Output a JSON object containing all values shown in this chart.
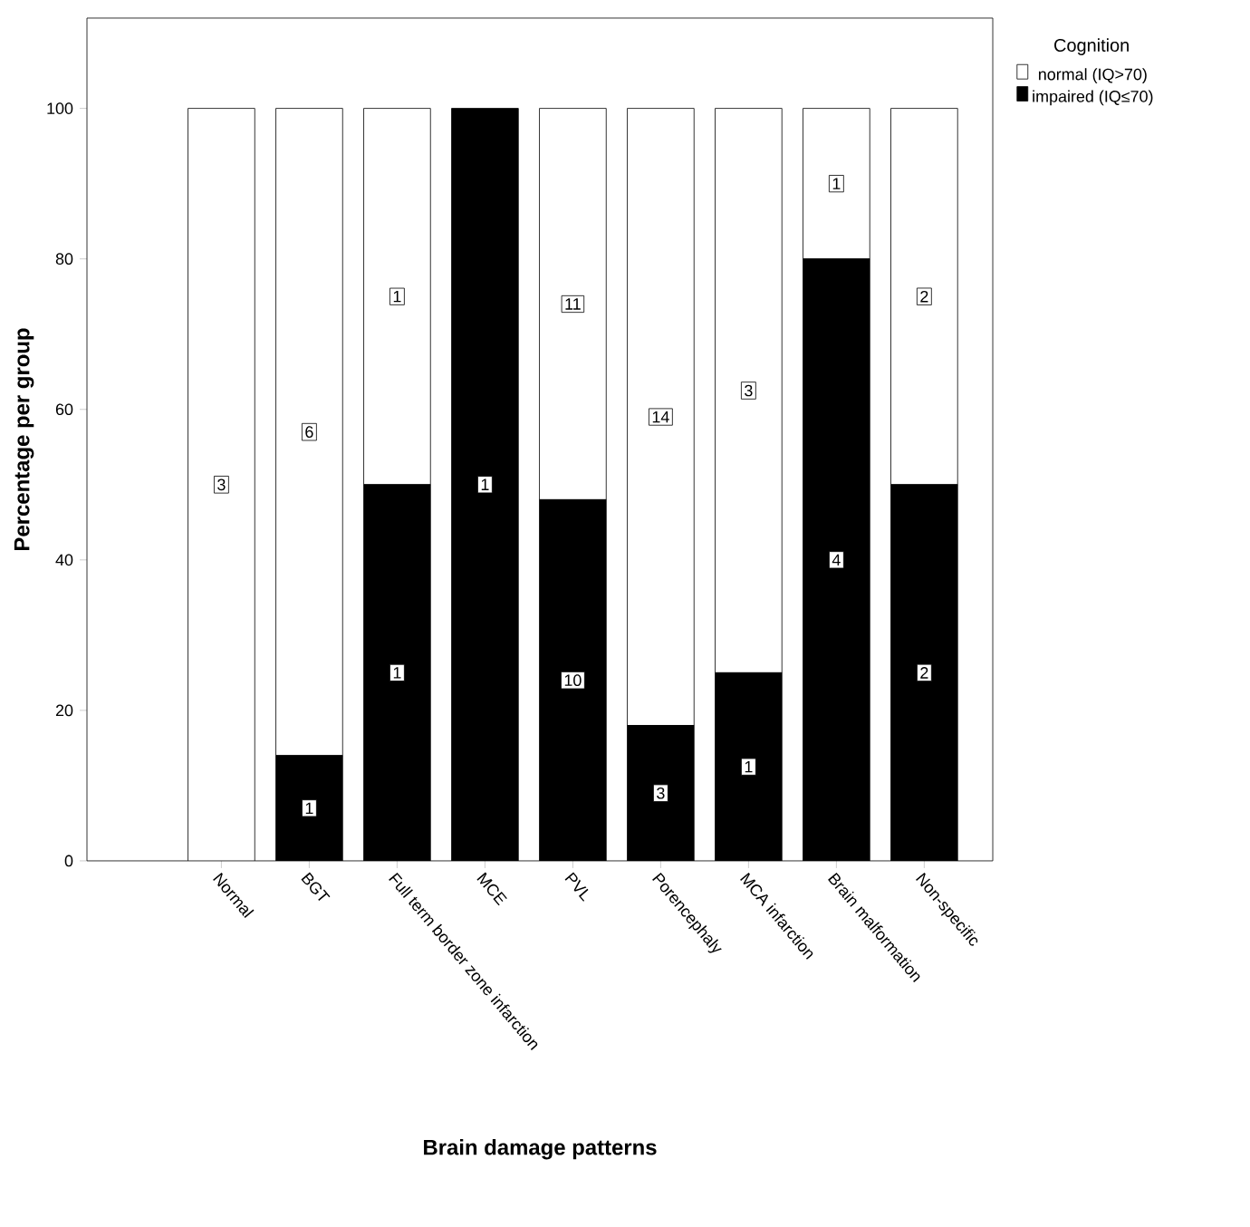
{
  "chart_data": {
    "type": "bar",
    "stacked": true,
    "xlabel": "Brain damage patterns",
    "ylabel": "Percentage per group",
    "legend_title": "Cognition",
    "categories": [
      "Normal",
      "BGT",
      "Full term border zone infarction",
      "MCE",
      "PVL",
      "Porencephaly",
      "MCA infarction",
      "Brain malformation",
      "Non-specific"
    ],
    "series": [
      {
        "name": "impaired (IQ≤70)",
        "color": "#000000",
        "values": [
          0,
          14,
          50,
          100,
          48,
          18,
          25,
          80,
          50
        ]
      },
      {
        "name": "normal (IQ>70)",
        "color": "#ffffff",
        "values": [
          100,
          86,
          50,
          0,
          52,
          82,
          75,
          20,
          50
        ]
      }
    ],
    "annotations": [
      {
        "text": "1",
        "x": "BGT",
        "y": 7
      },
      {
        "text": "1",
        "x": "Full term border zone infarction",
        "y": 25
      },
      {
        "text": "1",
        "x": "MCE",
        "y": 50
      },
      {
        "text": "10",
        "x": "PVL",
        "y": 24
      },
      {
        "text": "3",
        "x": "Porencephaly",
        "y": 9
      },
      {
        "text": "1",
        "x": "MCA infarction",
        "y": 12.5
      },
      {
        "text": "4",
        "x": "Brain malformation",
        "y": 40
      },
      {
        "text": "2",
        "x": "Non-specific",
        "y": 25
      },
      {
        "text": "3",
        "x": "Normal",
        "y": 50
      },
      {
        "text": "6",
        "x": "BGT",
        "y": 57
      },
      {
        "text": "1",
        "x": "Full term border zone infarction",
        "y": 75
      },
      {
        "text": "11",
        "x": "PVL",
        "y": 74
      },
      {
        "text": "14",
        "x": "Porencephaly",
        "y": 59
      },
      {
        "text": "3",
        "x": "MCA infarction",
        "y": 62.5
      },
      {
        "text": "1",
        "x": "Brain malformation",
        "y": 90
      },
      {
        "text": "2",
        "x": "Non-specific",
        "y": 75
      }
    ],
    "ylim": [
      0,
      112
    ],
    "yticks": [
      0,
      20,
      40,
      60,
      80,
      100
    ],
    "legend": "top right"
  }
}
